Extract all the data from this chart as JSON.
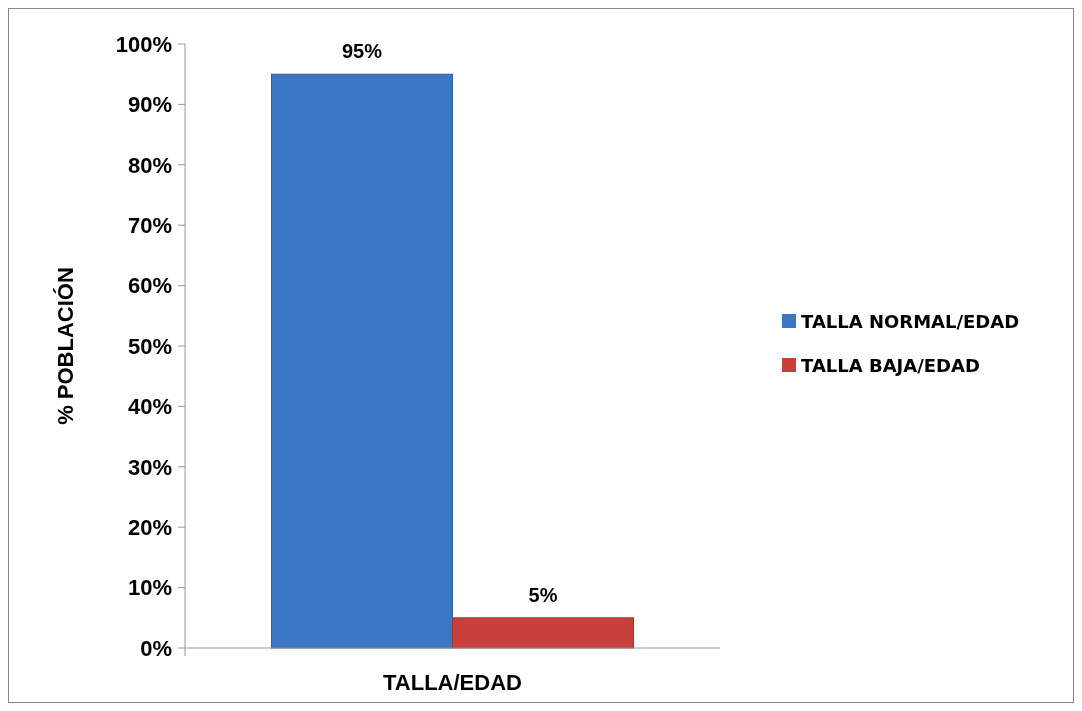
{
  "chart_data": {
    "type": "bar",
    "categories": [
      "TALLA/EDAD"
    ],
    "ylabel": "% POBLACIÓN",
    "series": [
      {
        "name": "TALLA NORMAL/EDAD",
        "color": "#3d77c4",
        "values": [
          95
        ],
        "value_labels": [
          "95%"
        ]
      },
      {
        "name": "TALLA BAJA/EDAD",
        "color": "#c8403c",
        "values": [
          5
        ],
        "value_labels": [
          "5%"
        ]
      }
    ],
    "ylim": [
      0,
      100
    ],
    "yticks": [
      {
        "value": 0,
        "label": "0%"
      },
      {
        "value": 10,
        "label": "10%"
      },
      {
        "value": 20,
        "label": "20%"
      },
      {
        "value": 30,
        "label": "30%"
      },
      {
        "value": 40,
        "label": "40%"
      },
      {
        "value": 50,
        "label": "50%"
      },
      {
        "value": 60,
        "label": "60%"
      },
      {
        "value": 70,
        "label": "70%"
      },
      {
        "value": 80,
        "label": "80%"
      },
      {
        "value": 90,
        "label": "90%"
      },
      {
        "value": 100,
        "label": "100%"
      }
    ],
    "grid": false,
    "legend": "right"
  }
}
